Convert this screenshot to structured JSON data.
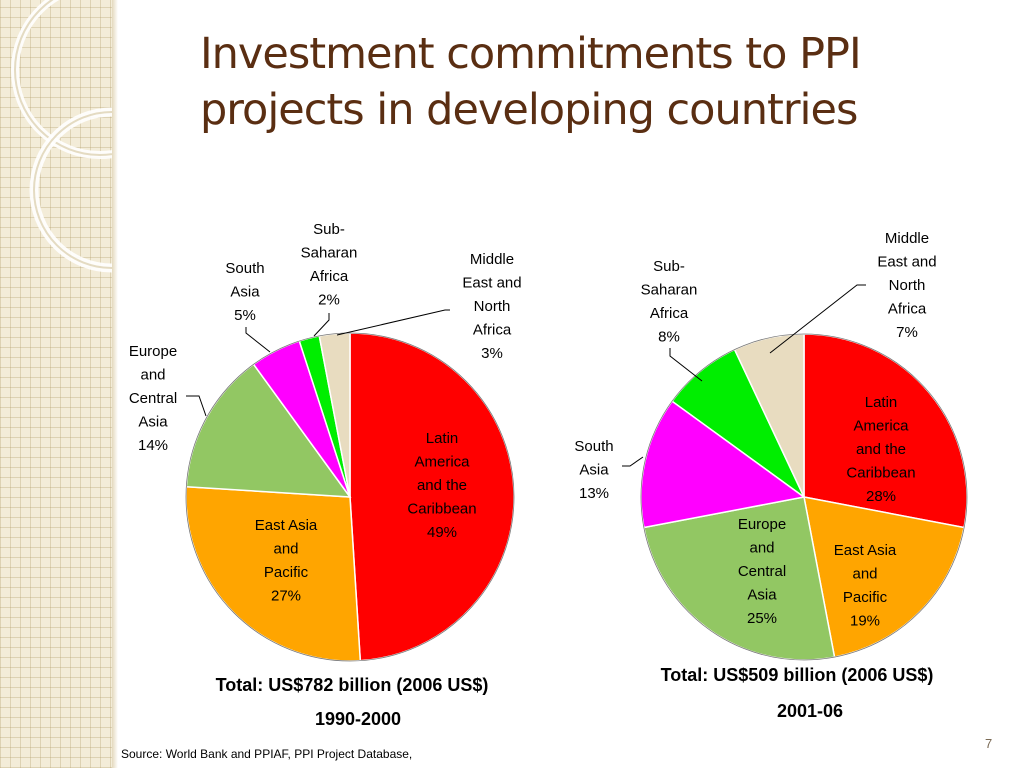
{
  "slide": {
    "title_line1": "Investment commitments to PPI",
    "title_line2": "projects in developing countries",
    "source": "Source: World Bank and PPIAF, PPI Project Database,",
    "page_number": "7"
  },
  "colors": {
    "title": "#5a2e12",
    "Latin America and the Caribbean": "#ff0000",
    "East Asia and Pacific": "#ffa500",
    "Europe and Central Asia": "#92c763",
    "South Asia": "#ff00ff",
    "Sub-Saharan Africa": "#00ee00",
    "Middle East and North Africa": "#e8dcc0"
  },
  "chart_data": [
    {
      "type": "pie",
      "period": "1990-2000",
      "total_label": "Total: US$782 billion (2006 US$)",
      "slices": [
        {
          "name": "Latin America and the Caribbean",
          "label_lines": [
            "Latin",
            "America",
            "and the",
            "Caribbean",
            "49%"
          ],
          "value": 49
        },
        {
          "name": "East Asia and Pacific",
          "label_lines": [
            "East Asia",
            "and",
            "Pacific",
            "27%"
          ],
          "value": 27
        },
        {
          "name": "Europe and Central Asia",
          "label_lines": [
            "Europe",
            "and",
            "Central",
            "Asia",
            "14%"
          ],
          "value": 14
        },
        {
          "name": "South Asia",
          "label_lines": [
            "South",
            "Asia",
            "5%"
          ],
          "value": 5
        },
        {
          "name": "Sub-Saharan Africa",
          "label_lines": [
            "Sub-",
            "Saharan",
            "Africa",
            "2%"
          ],
          "value": 2
        },
        {
          "name": "Middle East and North Africa",
          "label_lines": [
            "Middle",
            "East and",
            "North",
            "Africa",
            "3%"
          ],
          "value": 3
        }
      ]
    },
    {
      "type": "pie",
      "period": "2001-06",
      "total_label": "Total: US$509 billion (2006 US$)",
      "slices": [
        {
          "name": "Latin America and the Caribbean",
          "label_lines": [
            "Latin",
            "America",
            "and the",
            "Caribbean",
            "28%"
          ],
          "value": 28
        },
        {
          "name": "East Asia and Pacific",
          "label_lines": [
            "East Asia",
            "and",
            "Pacific",
            "19%"
          ],
          "value": 19
        },
        {
          "name": "Europe and Central Asia",
          "label_lines": [
            "Europe",
            "and",
            "Central",
            "Asia",
            "25%"
          ],
          "value": 25
        },
        {
          "name": "South Asia",
          "label_lines": [
            "South",
            "Asia",
            "13%"
          ],
          "value": 13
        },
        {
          "name": "Sub-Saharan Africa",
          "label_lines": [
            "Sub-",
            "Saharan",
            "Africa",
            "8%"
          ],
          "value": 8
        },
        {
          "name": "Middle East and North Africa",
          "label_lines": [
            "Middle",
            "East and",
            "North",
            "Africa",
            "7%"
          ],
          "value": 7
        }
      ]
    }
  ]
}
